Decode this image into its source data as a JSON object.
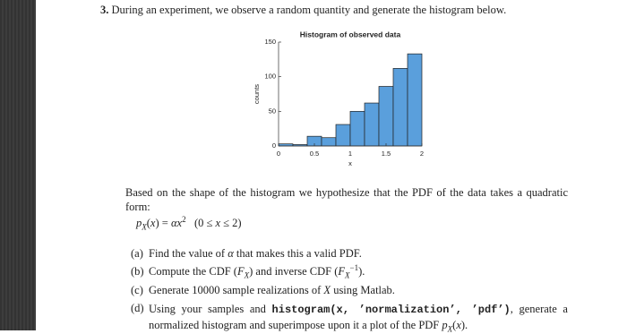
{
  "problem": {
    "number": "3.",
    "text": "During an experiment, we observe a random quantity and generate the histogram below."
  },
  "chart_data": {
    "type": "histogram",
    "title": "Histogram of observed data",
    "xlabel": "x",
    "ylabel": "counts",
    "bins": [
      0,
      0.2,
      0.4,
      0.6,
      0.8,
      1,
      1.2,
      1.4,
      1.6,
      1.8,
      2
    ],
    "values": [
      3,
      2,
      14,
      12,
      31,
      50,
      62,
      86,
      112,
      133
    ],
    "color": "#5a9fdc",
    "xlim": [
      0,
      2
    ],
    "ylim": [
      0,
      150
    ],
    "xticks": [
      0,
      0.5,
      1,
      1.5,
      2
    ],
    "yticks": [
      0,
      50,
      100,
      150
    ]
  },
  "paragraph": "Based on the shape of the histogram we hypothesize that the PDF of the data takes a quadratic form:",
  "formula": [
    "p",
    "X",
    "(",
    "x",
    ") = ",
    "α",
    "x",
    "2",
    "(0 ≤ ",
    "x",
    " ≤ 2)"
  ],
  "items": [
    [
      "(a)",
      "Find the value of ",
      "α",
      " that makes this a valid PDF."
    ],
    [
      "(b)",
      "Compute the CDF (",
      "F",
      "X",
      ") and inverse CDF (",
      "F",
      "X",
      "−1",
      ")."
    ],
    [
      "(c)",
      "Generate 10000 sample realizations of ",
      "X",
      " using Matlab."
    ],
    [
      "(d)",
      "Using your samples and ",
      "histogram(x, ’normalization’, ’pdf’)",
      ", generate a normalized histogram and superimpose upon it a plot of the PDF ",
      "p",
      "X",
      "(",
      "x",
      ")."
    ]
  ]
}
